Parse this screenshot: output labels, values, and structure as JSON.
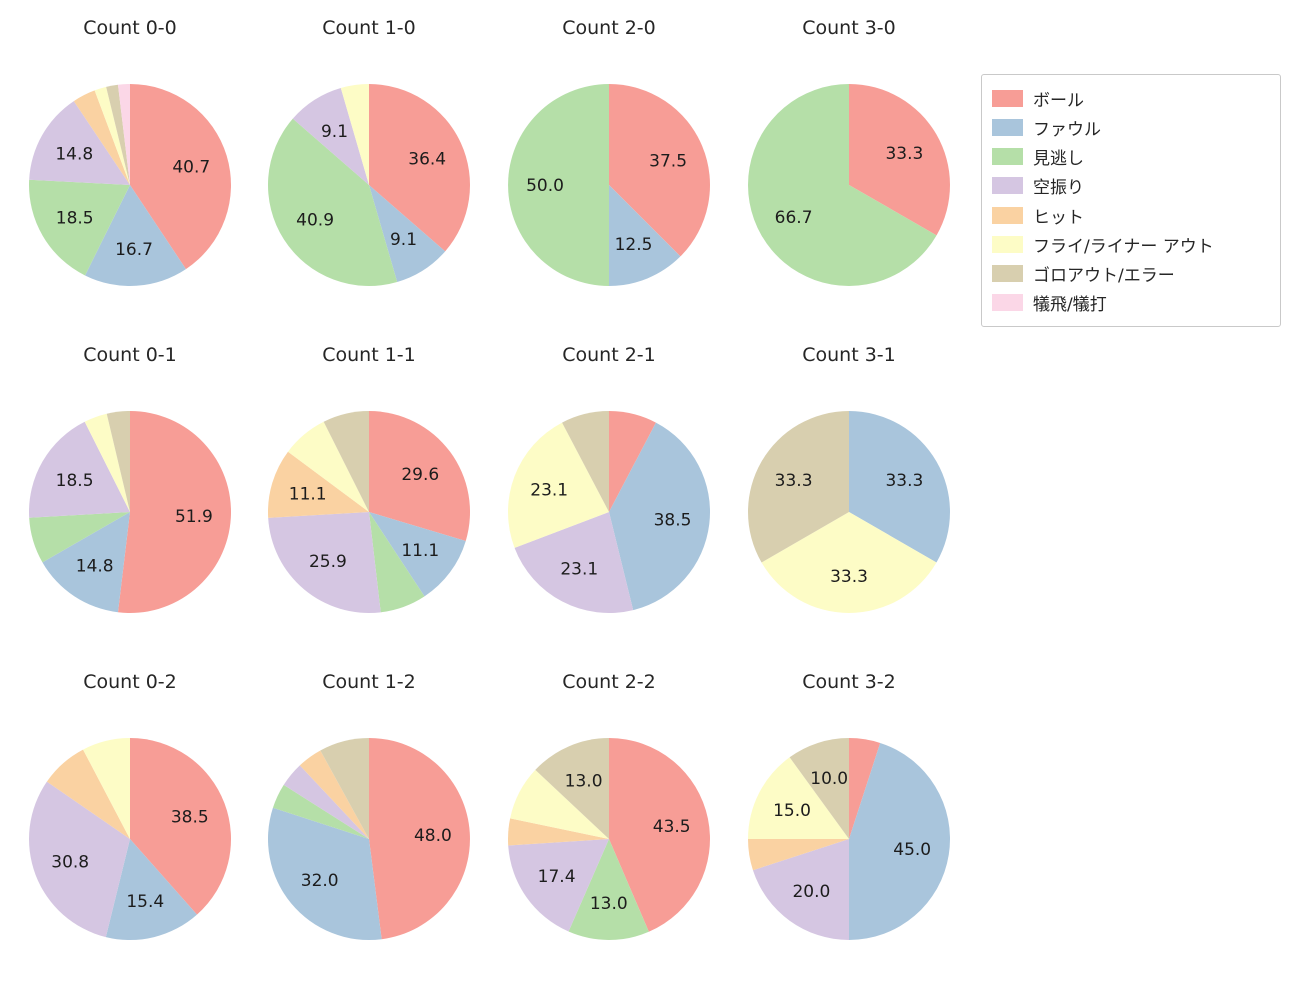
{
  "figure": {
    "background": "#ffffff",
    "title_color": "#262626"
  },
  "legend": {
    "items": [
      {
        "key": "ball",
        "label": "ボール",
        "color": "#F79D96"
      },
      {
        "key": "foul",
        "label": "ファウル",
        "color": "#A9C5DC"
      },
      {
        "key": "called-strike",
        "label": "見逃し",
        "color": "#B5DFA8"
      },
      {
        "key": "swinging-strike",
        "label": "空振り",
        "color": "#D5C6E2"
      },
      {
        "key": "hit",
        "label": "ヒット",
        "color": "#FAD2A2"
      },
      {
        "key": "fly-liner-out",
        "label": "フライ/ライナー アウト",
        "color": "#FDFCC6"
      },
      {
        "key": "groundout-error",
        "label": "ゴロアウト/エラー",
        "color": "#D8CFAF"
      },
      {
        "key": "sac-fly-bunt",
        "label": "犠飛/犠打",
        "color": "#FBD7E7"
      }
    ]
  },
  "chart_data": {
    "type": "pie",
    "unit": "percent",
    "start_angle": "12-oclock",
    "direction": "clockwise",
    "legend_position": "top-right",
    "categories": [
      "ボール",
      "ファウル",
      "見逃し",
      "空振り",
      "ヒット",
      "フライ/ライナー アウト",
      "ゴロアウト/エラー",
      "犠飛/犠打"
    ],
    "charts": [
      {
        "id": "count-0-0",
        "title": "Count 0-0",
        "values": [
          40.7,
          16.7,
          18.5,
          14.8,
          3.7,
          1.9,
          1.9,
          1.9
        ],
        "labels": [
          "40.7",
          "16.7",
          "18.5",
          "14.8",
          "",
          "",
          "",
          ""
        ]
      },
      {
        "id": "count-1-0",
        "title": "Count 1-0",
        "values": [
          36.4,
          9.1,
          40.9,
          9.1,
          0,
          4.5,
          0,
          0
        ],
        "labels": [
          "36.4",
          "9.1",
          "40.9",
          "9.1",
          "",
          "",
          "",
          ""
        ]
      },
      {
        "id": "count-2-0",
        "title": "Count 2-0",
        "values": [
          37.5,
          12.5,
          50.0,
          0,
          0,
          0,
          0,
          0
        ],
        "labels": [
          "37.5",
          "12.5",
          "50.0",
          "",
          "",
          "",
          "",
          ""
        ]
      },
      {
        "id": "count-3-0",
        "title": "Count 3-0",
        "values": [
          33.3,
          0,
          66.7,
          0,
          0,
          0,
          0,
          0
        ],
        "labels": [
          "33.3",
          "",
          "66.7",
          "",
          "",
          "",
          "",
          ""
        ]
      },
      {
        "id": "count-0-1",
        "title": "Count 0-1",
        "values": [
          51.9,
          14.8,
          7.4,
          18.5,
          0,
          3.7,
          3.7,
          0
        ],
        "labels": [
          "51.9",
          "14.8",
          "",
          "18.5",
          "",
          "",
          "",
          ""
        ]
      },
      {
        "id": "count-1-1",
        "title": "Count 1-1",
        "values": [
          29.6,
          11.1,
          7.4,
          25.9,
          11.1,
          7.4,
          7.4,
          0
        ],
        "labels": [
          "29.6",
          "11.1",
          "",
          "25.9",
          "11.1",
          "",
          "",
          ""
        ]
      },
      {
        "id": "count-2-1",
        "title": "Count 2-1",
        "values": [
          7.7,
          38.5,
          0,
          23.1,
          0,
          23.1,
          7.7,
          0
        ],
        "labels": [
          "",
          "38.5",
          "",
          "23.1",
          "",
          "23.1",
          "",
          ""
        ]
      },
      {
        "id": "count-3-1",
        "title": "Count 3-1",
        "values": [
          0,
          33.3,
          0,
          0,
          0,
          33.3,
          33.3,
          0
        ],
        "labels": [
          "",
          "33.3",
          "",
          "",
          "",
          "33.3",
          "33.3",
          ""
        ]
      },
      {
        "id": "count-0-2",
        "title": "Count 0-2",
        "values": [
          38.5,
          15.4,
          0,
          30.8,
          7.7,
          7.7,
          0,
          0
        ],
        "labels": [
          "38.5",
          "15.4",
          "",
          "30.8",
          "",
          "",
          "",
          ""
        ]
      },
      {
        "id": "count-1-2",
        "title": "Count 1-2",
        "values": [
          48.0,
          32.0,
          4.0,
          4.0,
          4.0,
          0,
          8.0,
          0
        ],
        "labels": [
          "48.0",
          "32.0",
          "",
          "",
          "",
          "",
          "",
          ""
        ]
      },
      {
        "id": "count-2-2",
        "title": "Count 2-2",
        "values": [
          43.5,
          0,
          13.0,
          17.4,
          4.3,
          8.7,
          13.0,
          0
        ],
        "labels": [
          "43.5",
          "",
          "13.0",
          "17.4",
          "",
          "",
          "13.0",
          ""
        ]
      },
      {
        "id": "count-3-2",
        "title": "Count 3-2",
        "values": [
          5.0,
          45.0,
          0,
          20.0,
          5.0,
          15.0,
          10.0,
          0
        ],
        "labels": [
          "",
          "45.0",
          "",
          "20.0",
          "",
          "15.0",
          "10.0",
          ""
        ]
      }
    ]
  }
}
